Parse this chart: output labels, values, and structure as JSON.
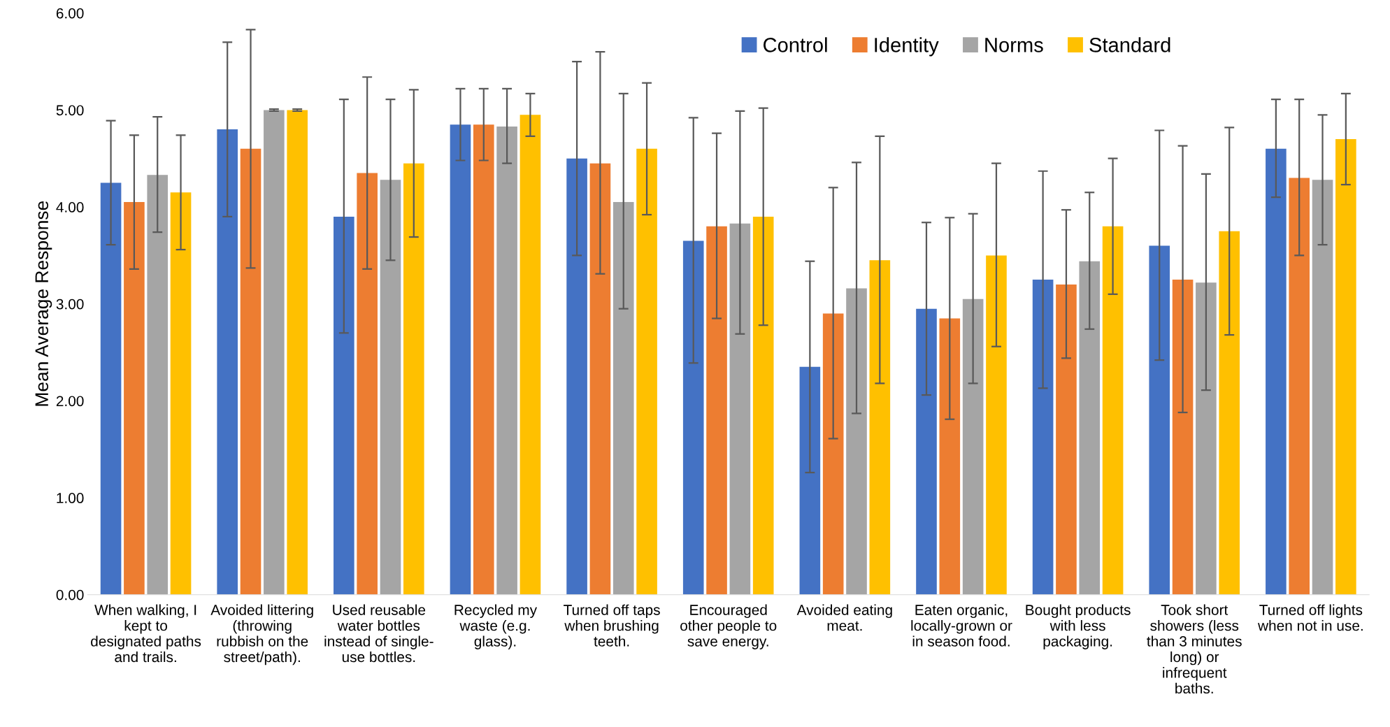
{
  "chart_data": {
    "type": "bar",
    "ylabel": "Mean Average Response",
    "categories": [
      "When walking, I\nkept to\ndesignated paths\nand trails.",
      "Avoided littering\n(throwing\nrubbish on the\nstreet/path).",
      "Used reusable\nwater bottles\ninstead of single-\nuse bottles.",
      "Recycled my\nwaste (e.g.\nglass).",
      "Turned off taps\nwhen brushing\nteeth.",
      "Encouraged\nother people to\nsave energy.",
      "Avoided eating\nmeat.",
      "Eaten organic,\nlocally-grown or\nin season food.",
      "Bought products\nwith less\npackaging.",
      "Took short\nshowers (less\nthan 3 minutes\nlong) or\ninfrequent\nbaths.",
      "Turned off lights\nwhen not in use."
    ],
    "series": [
      {
        "name": "Control",
        "color": "#4472c4",
        "values": [
          4.25,
          4.8,
          3.9,
          4.85,
          4.5,
          3.65,
          2.35,
          2.95,
          3.25,
          3.6,
          4.6
        ],
        "errors": [
          [
            3.61,
            4.89
          ],
          [
            3.9,
            5.7
          ],
          [
            2.7,
            5.11
          ],
          [
            4.48,
            5.22
          ],
          [
            3.5,
            5.5
          ],
          [
            2.39,
            4.92
          ],
          [
            1.26,
            3.44
          ],
          [
            2.06,
            3.84
          ],
          [
            2.13,
            4.37
          ],
          [
            2.42,
            4.79
          ],
          [
            4.1,
            5.11
          ]
        ]
      },
      {
        "name": "Identity",
        "color": "#ed7d31",
        "values": [
          4.05,
          4.6,
          4.35,
          4.85,
          4.45,
          3.8,
          2.9,
          2.85,
          3.2,
          3.25,
          4.3
        ],
        "errors": [
          [
            3.36,
            4.74
          ],
          [
            3.37,
            5.83
          ],
          [
            3.36,
            5.34
          ],
          [
            4.48,
            5.22
          ],
          [
            3.31,
            5.6
          ],
          [
            2.85,
            4.76
          ],
          [
            1.61,
            4.2
          ],
          [
            1.81,
            3.89
          ],
          [
            2.44,
            3.97
          ],
          [
            1.88,
            4.63
          ],
          [
            3.5,
            5.11
          ]
        ]
      },
      {
        "name": "Norms",
        "color": "#a5a5a5",
        "values": [
          4.33,
          5.0,
          4.28,
          4.83,
          4.05,
          3.83,
          3.16,
          3.05,
          3.44,
          3.22,
          4.28
        ],
        "errors": [
          [
            3.74,
            4.93
          ],
          [
            4.99,
            5.01
          ],
          [
            3.45,
            5.11
          ],
          [
            4.45,
            5.22
          ],
          [
            2.95,
            5.17
          ],
          [
            2.69,
            4.99
          ],
          [
            1.87,
            4.46
          ],
          [
            2.18,
            3.93
          ],
          [
            2.74,
            4.15
          ],
          [
            2.11,
            4.34
          ],
          [
            3.61,
            4.95
          ]
        ]
      },
      {
        "name": "Standard",
        "color": "#ffc000",
        "values": [
          4.15,
          5.0,
          4.45,
          4.95,
          4.6,
          3.9,
          3.45,
          3.5,
          3.8,
          3.75,
          4.7
        ],
        "errors": [
          [
            3.56,
            4.74
          ],
          [
            4.99,
            5.01
          ],
          [
            3.69,
            5.21
          ],
          [
            4.73,
            5.17
          ],
          [
            3.92,
            5.28
          ],
          [
            2.78,
            5.02
          ],
          [
            2.18,
            4.73
          ],
          [
            2.56,
            4.45
          ],
          [
            3.1,
            4.5
          ],
          [
            2.68,
            4.82
          ],
          [
            4.23,
            5.17
          ]
        ]
      }
    ],
    "ylim": [
      0,
      6
    ],
    "yticks": [
      {
        "value": 0,
        "label": "0.00"
      },
      {
        "value": 1,
        "label": "1.00"
      },
      {
        "value": 2,
        "label": "2.00"
      },
      {
        "value": 3,
        "label": "3.00"
      },
      {
        "value": 4,
        "label": "4.00"
      },
      {
        "value": 5,
        "label": "5.00"
      },
      {
        "value": 6,
        "label": "6.00"
      }
    ],
    "grid": false,
    "legend": "top right"
  }
}
